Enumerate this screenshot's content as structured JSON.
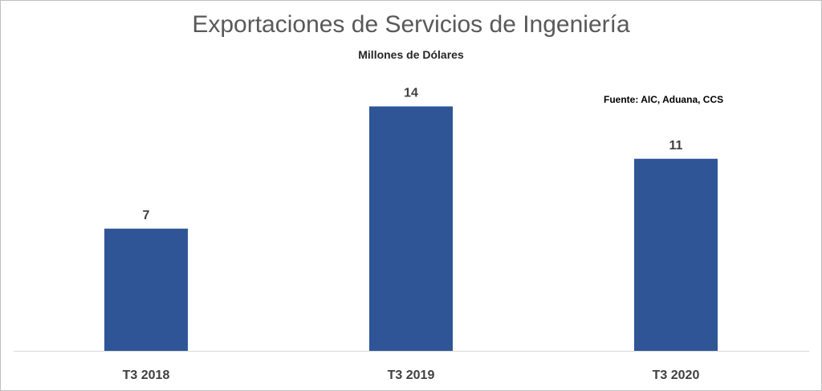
{
  "chart_data": {
    "type": "bar",
    "title": "Exportaciones de Servicios de Ingeniería",
    "subtitle": "Millones de Dólares",
    "source": "Fuente: AIC, Aduana, CCS",
    "categories": [
      "T3 2018",
      "T3 2019",
      "T3 2020"
    ],
    "values": [
      7,
      14,
      11
    ],
    "data_labels": [
      "7",
      "14",
      "11"
    ],
    "grid": false,
    "legend": "none",
    "colors": {
      "bar": "#2f5597"
    }
  }
}
